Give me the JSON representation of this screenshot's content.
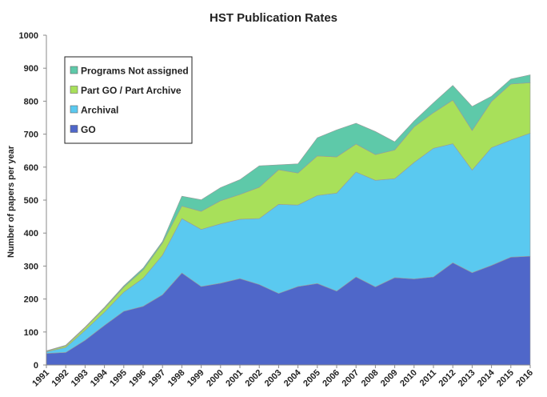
{
  "chart_data": {
    "type": "area",
    "stacked": true,
    "title": "HST Publication Rates",
    "xlabel": "",
    "ylabel": "Number of papers per year",
    "ylim": [
      0,
      1000
    ],
    "yticks": [
      0,
      100,
      200,
      300,
      400,
      500,
      600,
      700,
      800,
      900,
      1000
    ],
    "grid": false,
    "legend_position": "top-left",
    "x": [
      "1991",
      "1992",
      "1993",
      "1994",
      "1995",
      "1996",
      "1997",
      "1998",
      "1999",
      "2000",
      "2001",
      "2002",
      "2003",
      "2004",
      "2005",
      "2006",
      "2007",
      "2008",
      "2009",
      "2010",
      "2011",
      "2012",
      "2013",
      "2014",
      "2015",
      "2016"
    ],
    "series": [
      {
        "name": "GO",
        "color": "#4f67c9",
        "values": [
          35,
          38,
          75,
          120,
          163,
          178,
          213,
          279,
          238,
          248,
          262,
          244,
          217,
          238,
          247,
          224,
          267,
          237,
          265,
          261,
          267,
          310,
          280,
          302,
          327,
          330
        ]
      },
      {
        "name": "Archival",
        "color": "#5ac9f0",
        "values": [
          5,
          15,
          30,
          40,
          58,
          85,
          120,
          165,
          173,
          180,
          180,
          200,
          270,
          247,
          267,
          297,
          318,
          323,
          300,
          353,
          390,
          361,
          311,
          357,
          355,
          373
        ]
      },
      {
        "name": "Part GO / Part Archive",
        "color": "#a8e05a",
        "values": [
          2,
          5,
          8,
          12,
          15,
          25,
          37,
          38,
          55,
          70,
          75,
          95,
          105,
          97,
          120,
          110,
          85,
          78,
          87,
          108,
          108,
          132,
          120,
          140,
          170,
          153
        ]
      },
      {
        "name": "Programs Not assigned",
        "color": "#5ec9a9",
        "values": [
          1,
          2,
          2,
          3,
          4,
          6,
          5,
          30,
          35,
          40,
          45,
          65,
          15,
          28,
          55,
          82,
          63,
          70,
          25,
          18,
          30,
          45,
          73,
          16,
          15,
          24
        ]
      }
    ]
  }
}
